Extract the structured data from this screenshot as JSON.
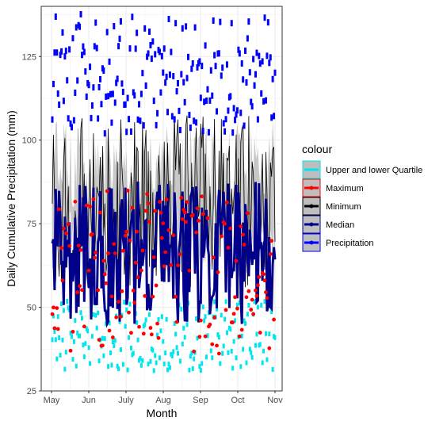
{
  "chart_data": {
    "type": "line",
    "title": "",
    "xlabel": "Month",
    "ylabel": "Daily Cumulative Precipitation (mm)",
    "ylim": [
      25,
      140
    ],
    "x_ticks": [
      "May",
      "Jun",
      "July",
      "Aug",
      "Sep",
      "Oct",
      "Nov"
    ],
    "y_ticks": [
      25,
      50,
      75,
      100,
      125
    ],
    "grid": true,
    "legend": {
      "title": "colour",
      "position": "right",
      "entries": [
        {
          "name": "Upper and lower Quartile",
          "color": "#00E5EE",
          "fill": "#BEBEBE"
        },
        {
          "name": "Maximum",
          "color": "#FF0000",
          "fill": "#BEBEBE"
        },
        {
          "name": "Minimum",
          "color": "#000000",
          "fill": "#BEBEBE"
        },
        {
          "name": "Median",
          "color": "#00008B",
          "fill": "#BEBEBE"
        },
        {
          "name": "Precipitation",
          "color": "#0000FF",
          "fill": "#BEBEBE"
        }
      ]
    },
    "series": [
      {
        "name": "Precipitation",
        "color": "#0000FF",
        "range_mm": [
          102,
          138
        ],
        "style": "dashed"
      },
      {
        "name": "Minimum",
        "color": "#000000",
        "range_mm": [
          55,
          108
        ],
        "style": "solid"
      },
      {
        "name": "Median",
        "color": "#00008B",
        "range_mm": [
          45,
          88
        ],
        "style": "solid-thick"
      },
      {
        "name": "Maximum",
        "color": "#FF0000",
        "range_mm": [
          36,
          85
        ],
        "style": "points"
      },
      {
        "name": "Upper and lower Quartile",
        "color": "#00E5EE",
        "range_mm": [
          31,
          52
        ],
        "style": "dashed"
      }
    ]
  },
  "colors": {
    "panel_bg": "#FFFFFF",
    "grid_major": "#EBEBEB",
    "panel_border": "#333333",
    "ribbon": "#BEBEBE"
  }
}
